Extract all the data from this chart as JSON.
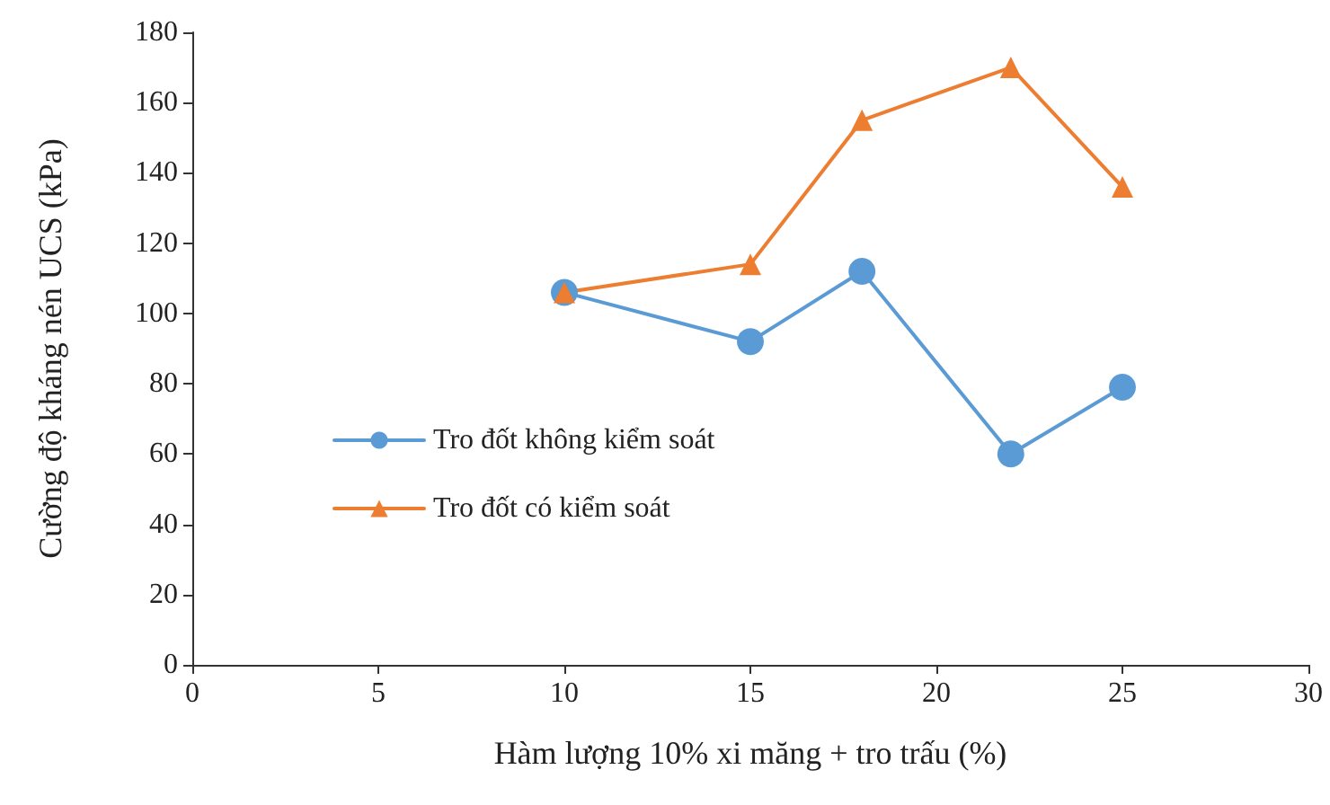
{
  "chart_data": {
    "type": "line",
    "xlabel": "Hàm lượng 10% xi măng + tro trấu (%)",
    "ylabel": "Cường độ kháng nén UCS (kPa)",
    "x": [
      10,
      15,
      18,
      22,
      25
    ],
    "series": [
      {
        "name": "Tro đốt không kiểm soát",
        "color": "#5b9bd5",
        "marker": "circle",
        "values": [
          106,
          92,
          112,
          60,
          79
        ]
      },
      {
        "name": "Tro đốt có kiểm soát",
        "color": "#ed7d31",
        "marker": "triangle",
        "values": [
          106,
          114,
          155,
          170,
          136
        ]
      }
    ],
    "xlim": [
      0,
      30
    ],
    "xticks": [
      0,
      5,
      10,
      15,
      20,
      25,
      30
    ],
    "ylim": [
      0,
      180
    ],
    "yticks": [
      0,
      20,
      40,
      60,
      80,
      100,
      120,
      140,
      160,
      180
    ],
    "grid": false,
    "legend": "center left",
    "line_style": "solid"
  }
}
